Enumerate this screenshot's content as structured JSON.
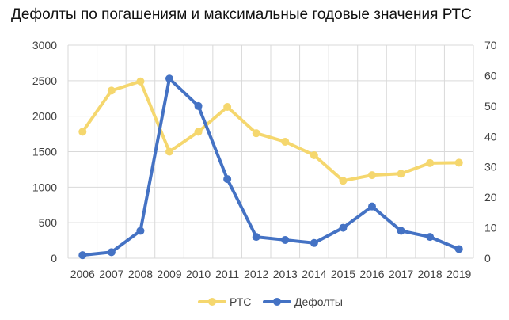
{
  "chart_data": {
    "type": "line",
    "title": "Дефолты по погашениям и максимальные годовые значения РТС",
    "categories": [
      "2006",
      "2007",
      "2008",
      "2009",
      "2010",
      "2011",
      "2012",
      "2013",
      "2014",
      "2015",
      "2016",
      "2017",
      "2018",
      "2019"
    ],
    "series": [
      {
        "name": "РТС",
        "axis": "left",
        "color": "#F5D76E",
        "values": [
          1780,
          2360,
          2490,
          1500,
          1780,
          2130,
          1760,
          1640,
          1450,
          1090,
          1170,
          1190,
          1340,
          1345
        ]
      },
      {
        "name": "Дефолты",
        "axis": "right",
        "color": "#4472C4",
        "values": [
          1,
          2,
          9,
          59,
          50,
          26,
          7,
          6,
          5,
          10,
          17,
          9,
          7,
          3
        ]
      }
    ],
    "y_left": {
      "lim": [
        0,
        3000
      ],
      "ticks": [
        0,
        500,
        1000,
        1500,
        2000,
        2500,
        3000
      ]
    },
    "y_right": {
      "lim": [
        0,
        70
      ],
      "ticks": [
        0,
        10,
        20,
        30,
        40,
        50,
        60,
        70
      ]
    },
    "grid": true,
    "legend_position": "bottom"
  }
}
